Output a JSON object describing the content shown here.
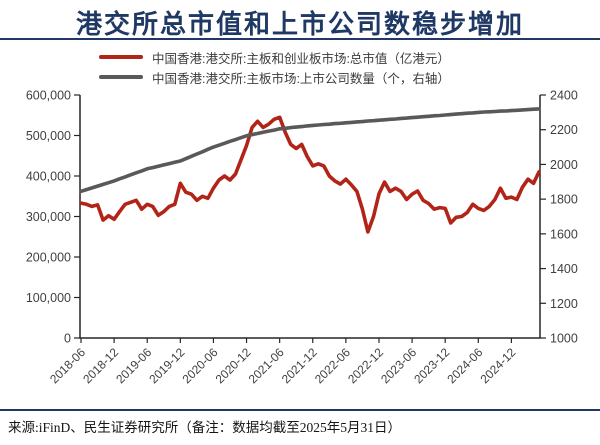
{
  "title": "港交所总市值和上市公司数稳步增加",
  "footer": "来源:iFinD、民生证券研究所（备注：数据均截至2025年5月31日）",
  "colors": {
    "title_navy": "#1F3864",
    "market_cap_red": "#B22418",
    "listed_companies_gray": "#595959",
    "axis": "#262626",
    "tick_text": "#404040"
  },
  "chart_data": {
    "type": "line",
    "x_interval": "monthly",
    "x_start": "2018-06",
    "x_end": "2025-05",
    "x_tick_labels": [
      "2018-06",
      "2018-12",
      "2019-06",
      "2019-12",
      "2020-06",
      "2020-12",
      "2021-06",
      "2021-12",
      "2022-06",
      "2022-12",
      "2023-06",
      "2023-12",
      "2024-06",
      "2024-12"
    ],
    "left_axis": {
      "min": 0,
      "max": 600000,
      "step": 100000,
      "tick_labels": [
        "0",
        "100,000",
        "200,000",
        "300,000",
        "400,000",
        "500,000",
        "600,000"
      ]
    },
    "right_axis": {
      "min": 1000,
      "max": 2400,
      "step": 200,
      "tick_labels": [
        "1000",
        "1200",
        "1400",
        "1600",
        "1800",
        "2000",
        "2200",
        "2400"
      ]
    },
    "grid": false,
    "legend_position": "top",
    "series": [
      {
        "name": "中国香港:港交所:主板和创业板市场:总市值（亿港元）",
        "axis": "left",
        "color": "#B22418",
        "values": [
          333000,
          330000,
          325000,
          329000,
          291000,
          302000,
          293000,
          312000,
          330000,
          335000,
          340000,
          318000,
          330000,
          325000,
          303000,
          312000,
          325000,
          330000,
          382000,
          360000,
          355000,
          340000,
          350000,
          345000,
          370000,
          390000,
          400000,
          390000,
          405000,
          440000,
          475000,
          520000,
          535000,
          520000,
          528000,
          540000,
          545000,
          508000,
          478000,
          468000,
          478000,
          448000,
          425000,
          430000,
          425000,
          400000,
          388000,
          380000,
          392000,
          378000,
          362000,
          318000,
          262000,
          300000,
          356000,
          385000,
          362000,
          370000,
          362000,
          342000,
          355000,
          363000,
          340000,
          332000,
          318000,
          322000,
          320000,
          284000,
          298000,
          300000,
          310000,
          330000,
          320000,
          315000,
          325000,
          342000,
          370000,
          345000,
          348000,
          342000,
          372000,
          392000,
          382000,
          410000
        ]
      },
      {
        "name": "中国香港:港交所:主板市场:上市公司数量（个，右轴）",
        "axis": "right",
        "color": "#595959",
        "values": [
          1845,
          1855,
          1865,
          1875,
          1885,
          1895,
          1905,
          1917,
          1928,
          1940,
          1952,
          1963,
          1975,
          1982,
          1990,
          1997,
          2005,
          2012,
          2020,
          2033,
          2047,
          2060,
          2073,
          2087,
          2100,
          2111,
          2122,
          2133,
          2143,
          2154,
          2165,
          2172,
          2178,
          2185,
          2192,
          2198,
          2205,
          2208,
          2212,
          2215,
          2218,
          2222,
          2225,
          2227,
          2230,
          2232,
          2235,
          2237,
          2240,
          2242,
          2245,
          2247,
          2250,
          2252,
          2255,
          2257,
          2260,
          2262,
          2265,
          2267,
          2270,
          2272,
          2275,
          2277,
          2280,
          2282,
          2285,
          2287,
          2290,
          2292,
          2295,
          2297,
          2300,
          2302,
          2303,
          2305,
          2307,
          2308,
          2310,
          2312,
          2314,
          2316,
          2318,
          2320
        ]
      }
    ]
  }
}
